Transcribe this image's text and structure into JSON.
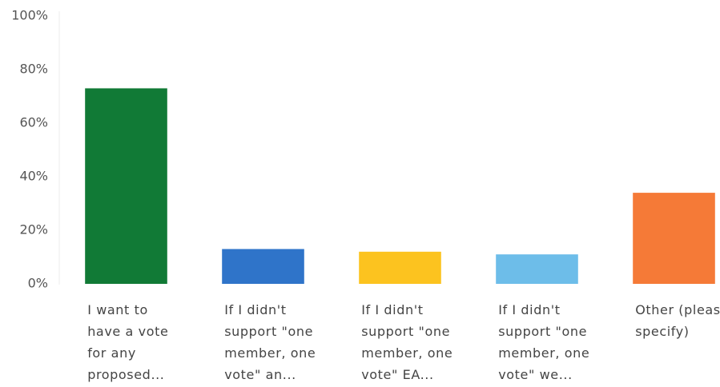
{
  "chart_data": {
    "type": "bar",
    "categories": [
      "I want to have a vote for any proposed...",
      "If I didn't support \"one member, one vote\" an...",
      "If I didn't support \"one member, one vote\" EA...",
      "If I didn't support \"one member, one vote\" we...",
      "Other (please specify)"
    ],
    "values": [
      73,
      13,
      12,
      11,
      34
    ],
    "colors": [
      "#117a36",
      "#2f74c9",
      "#fcc31f",
      "#6dbde9",
      "#f57a37"
    ],
    "ylim": [
      0,
      100
    ],
    "yticks": [
      {
        "value": 0,
        "label": "0%"
      },
      {
        "value": 20,
        "label": "20%"
      },
      {
        "value": 40,
        "label": "40%"
      },
      {
        "value": 60,
        "label": "60%"
      },
      {
        "value": 80,
        "label": "80%"
      },
      {
        "value": 100,
        "label": "100%"
      }
    ],
    "grid": false
  }
}
